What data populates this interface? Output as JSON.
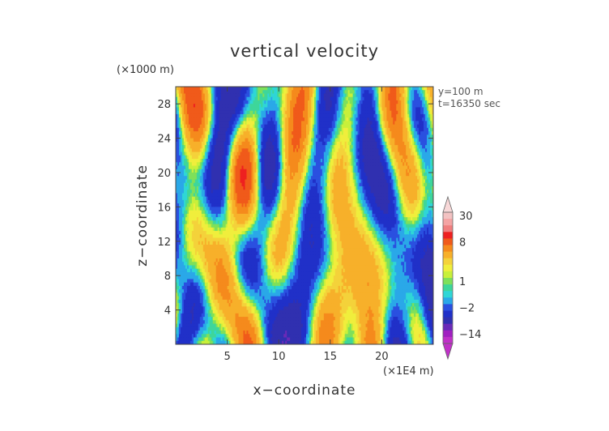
{
  "chart_data": {
    "type": "heatmap",
    "title": "vertical velocity",
    "xlabel": "x−coordinate",
    "ylabel": "z−coordinate",
    "x_units": "(×1E4 m)",
    "y_units": "(×1000 m)",
    "annotations": [
      "y=100  m",
      "t=16350 sec"
    ],
    "xlim": [
      0,
      25
    ],
    "ylim": [
      0,
      30
    ],
    "x_ticks": [
      5,
      10,
      15,
      20
    ],
    "y_ticks": [
      4,
      8,
      12,
      16,
      20,
      24,
      28
    ],
    "colorbar": {
      "labels": [
        {
          "text": "30",
          "value": 30
        },
        {
          "text": "8",
          "value": 8
        },
        {
          "text": "1",
          "value": 1
        },
        {
          "text": "−2",
          "value": -2
        },
        {
          "text": "−14",
          "value": -14
        }
      ],
      "levels": [
        {
          "value": 30,
          "color": "#f3c2c2"
        },
        {
          "value": 22,
          "color": "#f4a4a4"
        },
        {
          "value": 15,
          "color": "#f07f7f"
        },
        {
          "value": 11,
          "color": "#ee2020"
        },
        {
          "value": 8,
          "color": "#f05a1a"
        },
        {
          "value": 6,
          "color": "#f58a1c"
        },
        {
          "value": 4,
          "color": "#f7b02a"
        },
        {
          "value": 3,
          "color": "#f4d23a"
        },
        {
          "value": 2,
          "color": "#f0ee3c"
        },
        {
          "value": 1.5,
          "color": "#c8f03a"
        },
        {
          "value": 1,
          "color": "#7ee05a"
        },
        {
          "value": 0.5,
          "color": "#3ed69a"
        },
        {
          "value": 0,
          "color": "#2fd6d6"
        },
        {
          "value": -1,
          "color": "#2aa8e8"
        },
        {
          "value": -2,
          "color": "#2a50e0"
        },
        {
          "value": -4,
          "color": "#2030c8"
        },
        {
          "value": -7,
          "color": "#3030b0"
        },
        {
          "value": -10,
          "color": "#6a2ab8"
        },
        {
          "value": -14,
          "color": "#a020c0"
        },
        {
          "value": -20,
          "color": "#c030c8"
        }
      ],
      "min_triangle_color": "#c030c8",
      "max_triangle_color": "#f8d8d8"
    }
  }
}
